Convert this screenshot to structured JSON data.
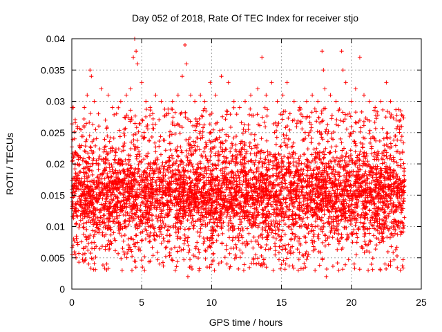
{
  "chart_data": {
    "type": "scatter",
    "title": "Day 052 of 2018, Rate Of TEC Index for receiver stjo",
    "xlabel": "GPS time / hours",
    "ylabel": "ROTI / TECUs",
    "xlim": [
      0,
      25
    ],
    "ylim": [
      0,
      0.04
    ],
    "x_ticks": [
      "0",
      "5",
      "10",
      "15",
      "20",
      "25"
    ],
    "y_ticks": [
      "0",
      "0.005",
      "0.01",
      "0.015",
      "0.02",
      "0.025",
      "0.03",
      "0.035",
      "0.04"
    ],
    "grid": true,
    "marker": "plus",
    "color": "#ff0000",
    "x_data_range": [
      0,
      23.8
    ],
    "series": [
      {
        "summary": "dense scatter of ROTI values, mostly between 0.003 and 0.028 TECU/min",
        "points": [
          [
            0.1,
            0.029
          ],
          [
            0.2,
            0.024
          ],
          [
            0.4,
            0.026
          ],
          [
            0.6,
            0.021
          ],
          [
            0.9,
            0.029
          ],
          [
            1.1,
            0.031
          ],
          [
            1.3,
            0.035
          ],
          [
            1.4,
            0.034
          ],
          [
            1.6,
            0.03
          ],
          [
            1.9,
            0.028
          ],
          [
            2.1,
            0.032
          ],
          [
            2.4,
            0.027
          ],
          [
            2.6,
            0.031
          ],
          [
            2.9,
            0.029
          ],
          [
            3.2,
            0.028
          ],
          [
            3.5,
            0.03
          ],
          [
            3.9,
            0.031
          ],
          [
            4.2,
            0.032
          ],
          [
            4.4,
            0.037
          ],
          [
            4.5,
            0.04
          ],
          [
            4.6,
            0.038
          ],
          [
            4.7,
            0.036
          ],
          [
            5.0,
            0.033
          ],
          [
            5.3,
            0.03
          ],
          [
            5.6,
            0.029
          ],
          [
            6.0,
            0.031
          ],
          [
            6.4,
            0.03
          ],
          [
            6.8,
            0.028
          ],
          [
            7.2,
            0.03
          ],
          [
            7.6,
            0.031
          ],
          [
            7.9,
            0.034
          ],
          [
            8.1,
            0.039
          ],
          [
            8.2,
            0.036
          ],
          [
            8.5,
            0.031
          ],
          [
            8.8,
            0.03
          ],
          [
            9.2,
            0.031
          ],
          [
            9.5,
            0.03
          ],
          [
            9.9,
            0.033
          ],
          [
            10.3,
            0.031
          ],
          [
            10.7,
            0.034
          ],
          [
            11.2,
            0.033
          ],
          [
            11.6,
            0.03
          ],
          [
            12.0,
            0.029
          ],
          [
            12.4,
            0.03
          ],
          [
            12.8,
            0.031
          ],
          [
            13.3,
            0.032
          ],
          [
            13.6,
            0.037
          ],
          [
            13.9,
            0.031
          ],
          [
            14.3,
            0.033
          ],
          [
            14.7,
            0.03
          ],
          [
            15.1,
            0.031
          ],
          [
            15.4,
            0.033
          ],
          [
            15.9,
            0.03
          ],
          [
            16.3,
            0.029
          ],
          [
            16.8,
            0.03
          ],
          [
            17.2,
            0.031
          ],
          [
            17.6,
            0.03
          ],
          [
            17.9,
            0.038
          ],
          [
            18.0,
            0.035
          ],
          [
            18.1,
            0.032
          ],
          [
            18.5,
            0.031
          ],
          [
            18.9,
            0.03
          ],
          [
            19.3,
            0.038
          ],
          [
            19.4,
            0.035
          ],
          [
            19.6,
            0.033
          ],
          [
            20.0,
            0.03
          ],
          [
            20.3,
            0.032
          ],
          [
            20.6,
            0.037
          ],
          [
            20.9,
            0.031
          ],
          [
            21.3,
            0.03
          ],
          [
            21.7,
            0.029
          ],
          [
            22.1,
            0.03
          ],
          [
            22.5,
            0.033
          ],
          [
            22.8,
            0.03
          ],
          [
            23.2,
            0.027
          ],
          [
            23.6,
            0.026
          ],
          [
            0.3,
            0.005
          ],
          [
            1.2,
            0.004
          ],
          [
            2.5,
            0.004
          ],
          [
            3.6,
            0.003
          ],
          [
            4.3,
            0.003
          ],
          [
            5.2,
            0.003
          ],
          [
            6.3,
            0.004
          ],
          [
            7.4,
            0.003
          ],
          [
            8.3,
            0.002
          ],
          [
            9.1,
            0.003
          ],
          [
            10.2,
            0.003
          ],
          [
            11.1,
            0.004
          ],
          [
            12.3,
            0.003
          ],
          [
            13.2,
            0.004
          ],
          [
            14.4,
            0.003
          ],
          [
            15.3,
            0.004
          ],
          [
            16.2,
            0.003
          ],
          [
            17.4,
            0.003
          ],
          [
            18.2,
            0.002
          ],
          [
            19.1,
            0.003
          ],
          [
            20.2,
            0.004
          ],
          [
            21.2,
            0.003
          ],
          [
            22.4,
            0.004
          ],
          [
            23.5,
            0.003
          ]
        ]
      }
    ]
  }
}
